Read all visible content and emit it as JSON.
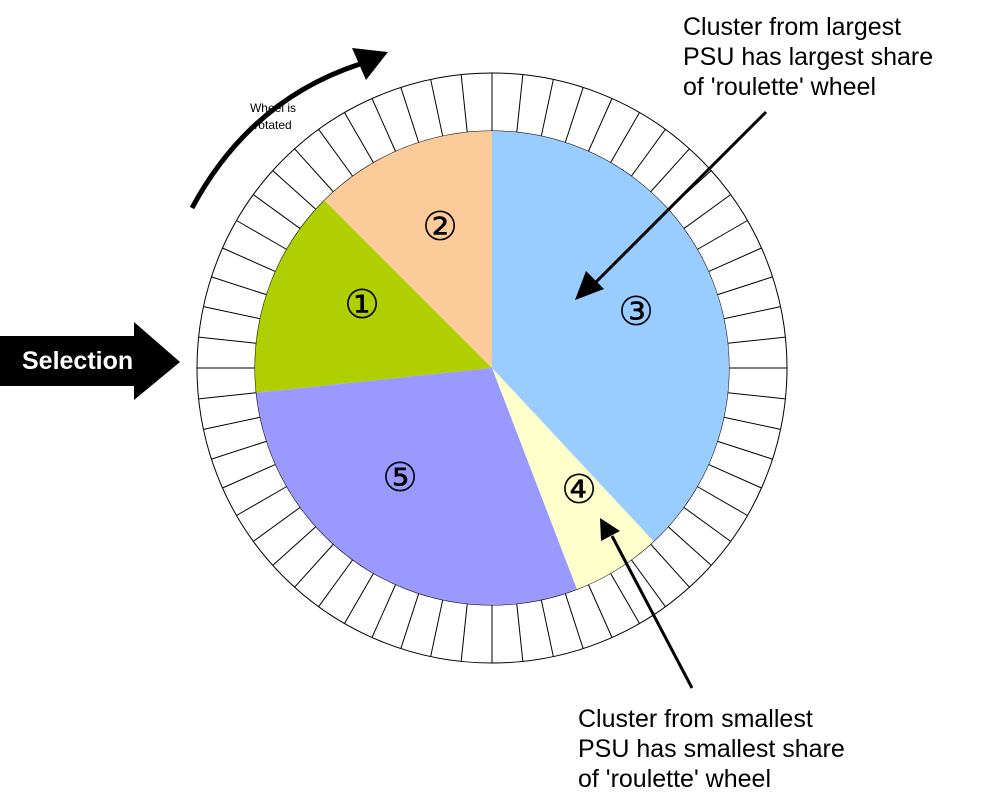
{
  "segments": [
    {
      "number": "①",
      "fill": "#b0cf00"
    },
    {
      "number": "②",
      "fill": "#fccb9a"
    },
    {
      "number": "③",
      "fill": "#99ccff"
    },
    {
      "number": "④",
      "fill": "#ffffcc"
    },
    {
      "number": "⑤",
      "fill": "#9999ff"
    }
  ],
  "rim_slots": 60,
  "rotation_label": [
    "Wheel is",
    "rotated"
  ],
  "selection_label": "Selection",
  "annotation_largest": [
    "Cluster from largest",
    "PSU has largest share",
    "of 'roulette' wheel"
  ],
  "annotation_smallest": [
    "Cluster from smallest",
    "PSU has smallest share",
    "of 'roulette' wheel"
  ]
}
